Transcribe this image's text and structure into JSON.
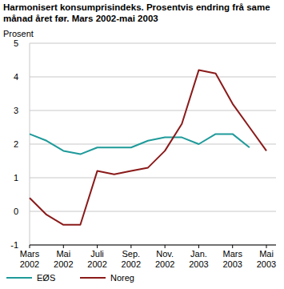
{
  "chart_data": {
    "type": "line",
    "title": "Harmonisert konsumprisindeks. Prosentvis endring frå same månad året før. Mars 2002-mai 2003",
    "y_label": "Prosent",
    "categories": [
      "Mars 2002",
      null,
      "Mai 2002",
      null,
      "Juli 2002",
      null,
      "Sep. 2002",
      null,
      "Nov. 2002",
      null,
      "Jan. 2003",
      null,
      "Mars 2003",
      null,
      "Mai 2003"
    ],
    "series": [
      {
        "name": "EØS",
        "color": "#1f9a9a",
        "values": [
          2.3,
          2.1,
          1.8,
          1.7,
          1.9,
          1.9,
          1.9,
          2.1,
          2.2,
          2.2,
          2.0,
          2.3,
          2.3,
          1.9,
          null
        ]
      },
      {
        "name": "Noreg",
        "color": "#8b1a1a",
        "values": [
          0.4,
          -0.1,
          -0.4,
          -0.4,
          1.2,
          1.1,
          1.2,
          1.3,
          1.8,
          2.6,
          4.2,
          4.1,
          3.2,
          2.5,
          1.8
        ]
      }
    ],
    "ylim": [
      -1,
      5
    ],
    "yticks": [
      -1,
      0,
      1,
      2,
      3,
      4,
      5
    ],
    "grid": true,
    "legend": "bottom"
  }
}
